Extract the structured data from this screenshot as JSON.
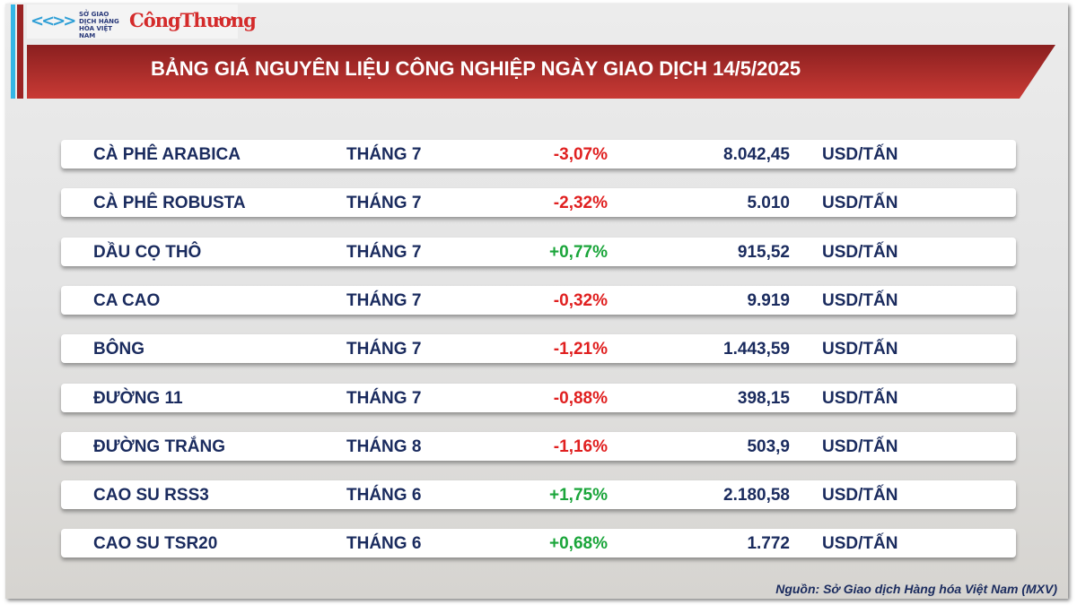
{
  "logo": {
    "mxv_text": "SỞ GIAO DỊCH HÀNG HÓA VIỆT NAM",
    "brand": "CôngThương"
  },
  "title": "BẢNG GIÁ NGUYÊN LIỆU CÔNG NGHIỆP NGÀY GIAO DỊCH 14/5/2025",
  "rows": [
    {
      "name": "CÀ PHÊ ARABICA",
      "month": "THÁNG 7",
      "change": "-3,07%",
      "price": "8.042,45",
      "unit": "USD/TẤN"
    },
    {
      "name": "CÀ PHÊ ROBUSTA",
      "month": "THÁNG 7",
      "change": "-2,32%",
      "price": "5.010",
      "unit": "USD/TẤN"
    },
    {
      "name": "DẦU CỌ THÔ",
      "month": "THÁNG 7",
      "change": "+0,77%",
      "price": "915,52",
      "unit": "USD/TẤN"
    },
    {
      "name": "CA CAO",
      "month": "THÁNG 7",
      "change": "-0,32%",
      "price": "9.919",
      "unit": "USD/TẤN"
    },
    {
      "name": "BÔNG",
      "month": "THÁNG 7",
      "change": "-1,21%",
      "price": "1.443,59",
      "unit": "USD/TẤN"
    },
    {
      "name": "ĐƯỜNG 11",
      "month": "THÁNG 7",
      "change": "-0,88%",
      "price": "398,15",
      "unit": "USD/TẤN"
    },
    {
      "name": "ĐƯỜNG TRẮNG",
      "month": "THÁNG 8",
      "change": "-1,16%",
      "price": "503,9",
      "unit": "USD/TẤN"
    },
    {
      "name": "CAO SU RSS3",
      "month": "THÁNG 6",
      "change": "+1,75%",
      "price": "2.180,58",
      "unit": "USD/TẤN"
    },
    {
      "name": "CAO SU TSR20",
      "month": "THÁNG 6",
      "change": "+0,68%",
      "price": "1.772",
      "unit": "USD/TẤN"
    }
  ],
  "colors": {
    "negative": "#e02020",
    "positive": "#1aa53a",
    "text": "#1a2b5e",
    "header": "#b8302d"
  },
  "source": "Nguồn: Sở Giao dịch Hàng hóa Việt Nam (MXV)"
}
